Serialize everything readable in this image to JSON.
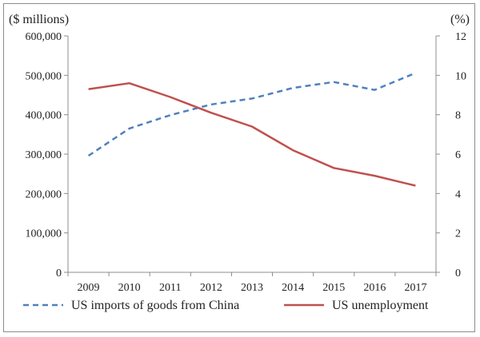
{
  "chart_data": {
    "type": "line",
    "x": [
      "2009",
      "2010",
      "2011",
      "2012",
      "2013",
      "2014",
      "2015",
      "2016",
      "2017"
    ],
    "left_axis": {
      "unit_label": "($ millions)",
      "ylim": [
        0,
        600000
      ],
      "ticks": [
        0,
        100000,
        200000,
        300000,
        400000,
        500000,
        600000
      ],
      "tick_labels": [
        "0",
        "100,000",
        "200,000",
        "300,000",
        "400,000",
        "500,000",
        "600,000"
      ]
    },
    "right_axis": {
      "unit_label": "(%)",
      "ylim": [
        0,
        12
      ],
      "ticks": [
        0,
        2,
        4,
        6,
        8,
        10,
        12
      ],
      "tick_labels": [
        "0",
        "2",
        "4",
        "6",
        "8",
        "10",
        "12"
      ]
    },
    "series": [
      {
        "name": "US imports of goods from China",
        "axis": "left",
        "style": "dashed",
        "color": "#4f81bd",
        "values": [
          296000,
          365000,
          399000,
          426000,
          441000,
          468000,
          483000,
          463000,
          506000
        ]
      },
      {
        "name": "US unemployment",
        "axis": "right",
        "style": "solid",
        "color": "#c0504d",
        "values": [
          9.3,
          9.6,
          8.9,
          8.1,
          7.4,
          6.2,
          5.3,
          4.9,
          4.4
        ]
      }
    ],
    "grid": false,
    "legend_position": "bottom"
  }
}
